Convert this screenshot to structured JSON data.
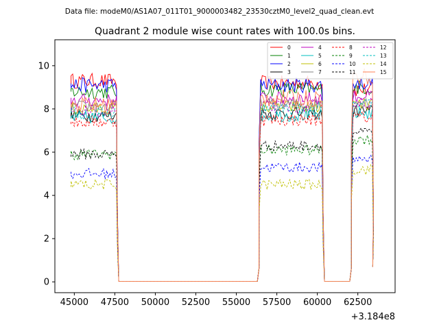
{
  "chart_data": {
    "type": "line",
    "suptitle": "Data file: modeM0/AS1A07_011T01_9000003482_23530cztM0_level2_quad_clean.evt",
    "title": "Quadrant 2 module wise count rates with 100.0s bins.",
    "xlabel": "",
    "ylabel": "",
    "offset_text": "+3.184e8",
    "xlim": [
      43800,
      64800
    ],
    "ylim": [
      -0.5,
      11.2
    ],
    "xticks": [
      45000,
      47500,
      50000,
      52500,
      55000,
      57500,
      60000,
      62500
    ],
    "xtick_labels": [
      "45000",
      "47500",
      "50000",
      "52500",
      "55000",
      "57500",
      "60000",
      "62500"
    ],
    "yticks": [
      0,
      2,
      4,
      6,
      8,
      10
    ],
    "ytick_labels": [
      "0",
      "2",
      "4",
      "6",
      "8",
      "10"
    ],
    "legend_position": "top-right",
    "legend_columns": 4,
    "segments": [
      [
        44800,
        47600
      ],
      [
        56400,
        60300
      ],
      [
        62100,
        63400
      ]
    ],
    "gap_level": 0.02,
    "series": [
      {
        "name": "0",
        "color": "#ff0000",
        "dash": "solid",
        "levels": [
          9.3,
          9.2,
          8.9
        ],
        "amp": 0.35
      },
      {
        "name": "1",
        "color": "#008000",
        "dash": "solid",
        "levels": [
          8.8,
          8.9,
          9.0
        ],
        "amp": 0.35
      },
      {
        "name": "2",
        "color": "#0000ff",
        "dash": "solid",
        "levels": [
          9.1,
          9.1,
          9.2
        ],
        "amp": 0.35
      },
      {
        "name": "3",
        "color": "#000000",
        "dash": "solid",
        "levels": [
          7.7,
          7.8,
          7.9
        ],
        "amp": 0.3
      },
      {
        "name": "4",
        "color": "#bf00bf",
        "dash": "solid",
        "levels": [
          8.4,
          8.5,
          8.6
        ],
        "amp": 0.3
      },
      {
        "name": "5",
        "color": "#00bfbf",
        "dash": "solid",
        "levels": [
          7.6,
          7.7,
          7.8
        ],
        "amp": 0.3
      },
      {
        "name": "6",
        "color": "#bfbf00",
        "dash": "solid",
        "levels": [
          8.0,
          8.1,
          8.2
        ],
        "amp": 0.3
      },
      {
        "name": "7",
        "color": "#808080",
        "dash": "solid",
        "levels": [
          8.1,
          8.2,
          8.3
        ],
        "amp": 0.3
      },
      {
        "name": "8",
        "color": "#ff0000",
        "dash": "dashed",
        "levels": [
          7.4,
          7.5,
          7.6
        ],
        "amp": 0.3
      },
      {
        "name": "9",
        "color": "#008000",
        "dash": "dashed",
        "levels": [
          5.9,
          6.1,
          6.6
        ],
        "amp": 0.25
      },
      {
        "name": "10",
        "color": "#0000ff",
        "dash": "dashed",
        "levels": [
          5.0,
          5.3,
          5.7
        ],
        "amp": 0.25
      },
      {
        "name": "11",
        "color": "#000000",
        "dash": "dashed",
        "levels": [
          5.9,
          6.3,
          6.9
        ],
        "amp": 0.25
      },
      {
        "name": "12",
        "color": "#bf00bf",
        "dash": "dashed",
        "levels": [
          7.9,
          8.1,
          8.3
        ],
        "amp": 0.3
      },
      {
        "name": "13",
        "color": "#00bfbf",
        "dash": "dashed",
        "levels": [
          7.8,
          8.0,
          8.2
        ],
        "amp": 0.3
      },
      {
        "name": "14",
        "color": "#bfbf00",
        "dash": "dashed",
        "levels": [
          4.5,
          4.5,
          5.2
        ],
        "amp": 0.25
      },
      {
        "name": "15",
        "color": "#ff7f50",
        "dash": "solid",
        "levels": [
          8.2,
          8.5,
          9.5
        ],
        "amp": 0.4
      }
    ]
  }
}
